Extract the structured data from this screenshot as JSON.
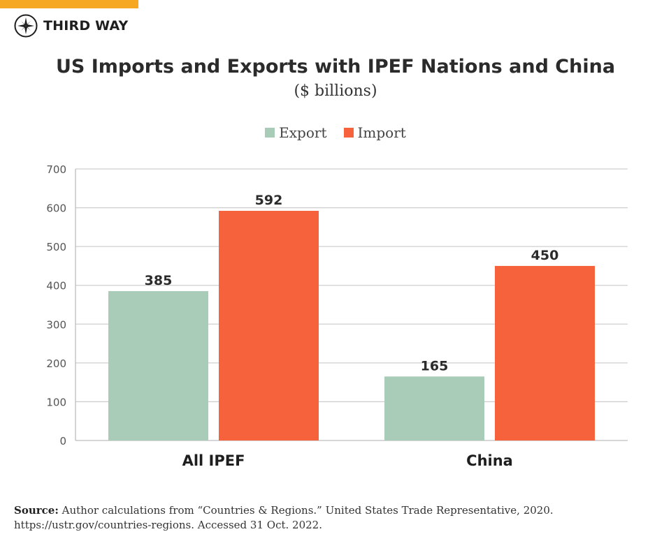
{
  "brand": {
    "name": "THIRD WAY",
    "bar_color": "#f7a823",
    "icon": "compass-icon"
  },
  "chart_data": {
    "type": "bar",
    "title": "US Imports and Exports with IPEF Nations and China",
    "subtitle": "($ billions)",
    "categories": [
      "All IPEF",
      "China"
    ],
    "series": [
      {
        "name": "Export",
        "values": [
          385,
          165
        ],
        "color": "#a8ccb8"
      },
      {
        "name": "Import",
        "values": [
          592,
          450
        ],
        "color": "#f6623b"
      }
    ],
    "ylim": [
      0,
      700
    ],
    "yticks": [
      "0",
      "100",
      "200",
      "300",
      "400",
      "500",
      "600",
      "700"
    ],
    "grid": true,
    "legend": "top-center",
    "xlabel": "",
    "ylabel": ""
  },
  "source": {
    "label": "Source:",
    "text": "Author calculations from “Countries & Regions.” United States Trade Representative, 2020. https://ustr.gov/countries-regions. Accessed 31 Oct. 2022."
  }
}
